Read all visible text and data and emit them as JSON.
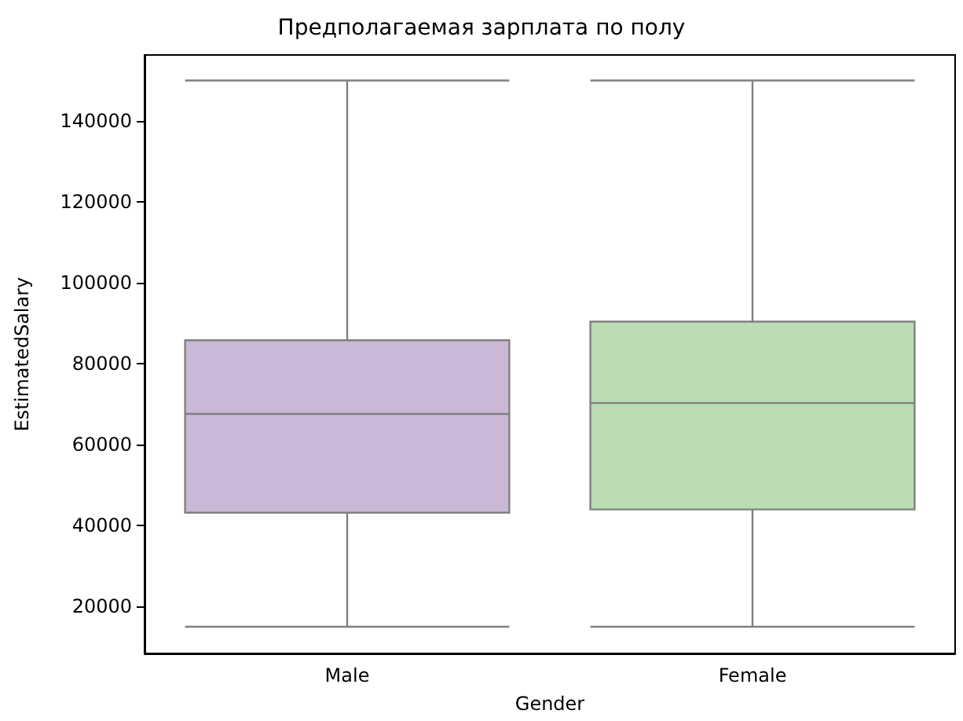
{
  "chart_data": {
    "type": "box",
    "title": "Предполагаемая зарплата по полу",
    "xlabel": "Gender",
    "ylabel": "EstimatedSalary",
    "categories": [
      "Male",
      "Female"
    ],
    "boxes": [
      {
        "low": 15000,
        "q1": 43200,
        "median": 67600,
        "q3": 85800,
        "high": 150000
      },
      {
        "low": 15000,
        "q1": 44000,
        "median": 70300,
        "q3": 90400,
        "high": 150000
      }
    ],
    "colors": [
      "#cbb8d6",
      "#bbdcb5"
    ],
    "ylim": [
      8400,
      156300
    ],
    "yticks": [
      20000,
      40000,
      60000,
      80000,
      100000,
      120000,
      140000
    ],
    "grid": false
  }
}
